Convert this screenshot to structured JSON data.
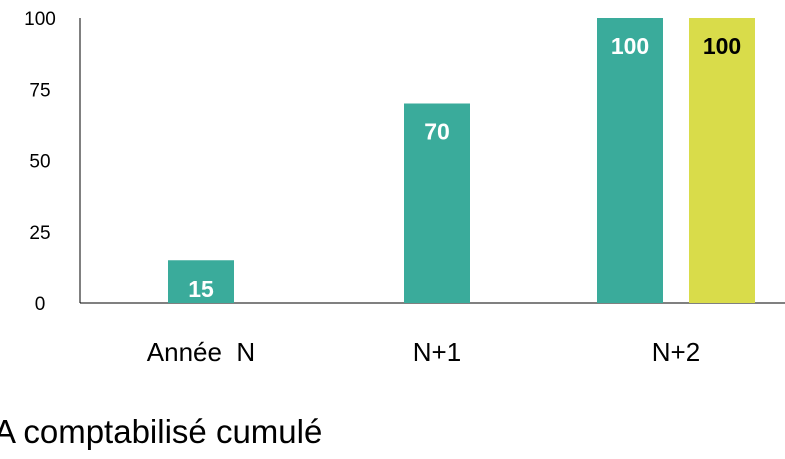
{
  "chart_data": {
    "type": "bar",
    "categories": [
      "Année  N",
      "N+1",
      "N+2"
    ],
    "series": [
      {
        "values": [
          15,
          70,
          100
        ],
        "color": "#3aab9b",
        "label_color": "#ffffff"
      },
      {
        "values": [
          null,
          null,
          100
        ],
        "color": "#d9dc4a",
        "label_color": "#000000"
      }
    ],
    "y_ticks": [
      "0",
      "25",
      "50",
      "75",
      "100"
    ],
    "ylim": [
      0,
      100
    ],
    "grid": false,
    "legend": "none"
  },
  "caption": "A comptabilisé cumulé"
}
